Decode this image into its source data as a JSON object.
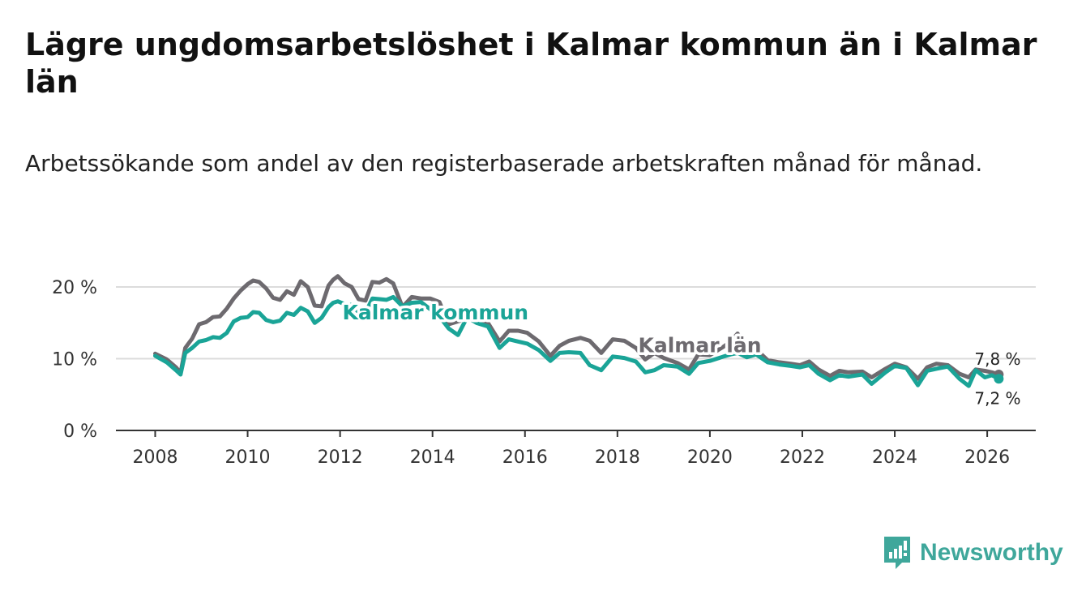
{
  "title": "Lägre ungdomsarbetslöshet i Kalmar kommun än i Kalmar län",
  "subtitle": "Arbetssökande som andel av den registerbaserade arbetskraften månad för månad.",
  "brand": {
    "name": "Newsworthy",
    "color": "#3fa79b"
  },
  "chart_data": {
    "type": "line",
    "title": "Lägre ungdomsarbetslöshet i Kalmar kommun än i Kalmar län",
    "subtitle": "Arbetssökande som andel av den registerbaserade arbetskraften månad för månad.",
    "xlabel": "",
    "ylabel": "",
    "xlim": [
      2007.15,
      2027.05
    ],
    "ylim": [
      0,
      20
    ],
    "x_ticks": [
      2008,
      2010,
      2012,
      2014,
      2016,
      2018,
      2020,
      2022,
      2024,
      2026
    ],
    "x_tick_labels": [
      "2008",
      "2010",
      "2012",
      "2014",
      "2016",
      "2018",
      "2020",
      "2022",
      "2024",
      "2026"
    ],
    "y_ticks": [
      0,
      10,
      20
    ],
    "y_tick_labels": [
      "0 %",
      "10 %",
      "20 %"
    ],
    "grid": true,
    "series": [
      {
        "name": "Kalmar län",
        "color": "#6d6a6f",
        "label": "Kalmar län",
        "end_label": "7,8 %",
        "points": [
          [
            2008.0,
            10.7
          ],
          [
            2008.25,
            9.9
          ],
          [
            2008.45,
            8.8
          ],
          [
            2008.55,
            8.0
          ],
          [
            2008.65,
            11.5
          ],
          [
            2008.8,
            12.8
          ],
          [
            2008.95,
            14.8
          ],
          [
            2009.1,
            15.1
          ],
          [
            2009.25,
            15.8
          ],
          [
            2009.4,
            15.9
          ],
          [
            2009.55,
            17.0
          ],
          [
            2009.7,
            18.4
          ],
          [
            2009.85,
            19.5
          ],
          [
            2010.0,
            20.4
          ],
          [
            2010.12,
            20.9
          ],
          [
            2010.25,
            20.7
          ],
          [
            2010.4,
            19.8
          ],
          [
            2010.55,
            18.5
          ],
          [
            2010.7,
            18.2
          ],
          [
            2010.85,
            19.4
          ],
          [
            2011.0,
            18.9
          ],
          [
            2011.15,
            20.8
          ],
          [
            2011.3,
            20.0
          ],
          [
            2011.45,
            17.4
          ],
          [
            2011.6,
            17.3
          ],
          [
            2011.75,
            20.2
          ],
          [
            2011.85,
            21.0
          ],
          [
            2011.95,
            21.5
          ],
          [
            2012.1,
            20.5
          ],
          [
            2012.25,
            20.0
          ],
          [
            2012.4,
            18.3
          ],
          [
            2012.55,
            18.1
          ],
          [
            2012.7,
            20.7
          ],
          [
            2012.85,
            20.6
          ],
          [
            2013.0,
            21.1
          ],
          [
            2013.15,
            20.5
          ],
          [
            2013.35,
            17.2
          ],
          [
            2013.55,
            18.6
          ],
          [
            2013.75,
            18.4
          ],
          [
            2013.95,
            18.4
          ],
          [
            2014.15,
            17.9
          ],
          [
            2014.35,
            14.8
          ],
          [
            2014.55,
            15.2
          ],
          [
            2014.75,
            15.6
          ],
          [
            2014.95,
            15.6
          ],
          [
            2015.2,
            15.0
          ],
          [
            2015.45,
            12.4
          ],
          [
            2015.65,
            13.9
          ],
          [
            2015.85,
            13.9
          ],
          [
            2016.05,
            13.6
          ],
          [
            2016.3,
            12.4
          ],
          [
            2016.55,
            10.4
          ],
          [
            2016.75,
            11.8
          ],
          [
            2016.95,
            12.5
          ],
          [
            2017.2,
            12.9
          ],
          [
            2017.4,
            12.5
          ],
          [
            2017.65,
            10.8
          ],
          [
            2017.9,
            12.7
          ],
          [
            2018.15,
            12.5
          ],
          [
            2018.4,
            11.5
          ],
          [
            2018.6,
            9.9
          ],
          [
            2018.8,
            10.8
          ],
          [
            2019.0,
            10.1
          ],
          [
            2019.3,
            9.4
          ],
          [
            2019.55,
            8.5
          ],
          [
            2019.75,
            10.6
          ],
          [
            2020.0,
            10.5
          ],
          [
            2020.3,
            11.7
          ],
          [
            2020.45,
            12.4
          ],
          [
            2020.6,
            13.5
          ],
          [
            2020.8,
            11.2
          ],
          [
            2021.0,
            11.3
          ],
          [
            2021.25,
            9.8
          ],
          [
            2021.5,
            9.5
          ],
          [
            2021.75,
            9.3
          ],
          [
            2021.95,
            9.1
          ],
          [
            2022.15,
            9.6
          ],
          [
            2022.35,
            8.5
          ],
          [
            2022.6,
            7.6
          ],
          [
            2022.8,
            8.3
          ],
          [
            2023.0,
            8.1
          ],
          [
            2023.3,
            8.2
          ],
          [
            2023.5,
            7.4
          ],
          [
            2023.8,
            8.6
          ],
          [
            2024.0,
            9.3
          ],
          [
            2024.25,
            8.8
          ],
          [
            2024.5,
            7.2
          ],
          [
            2024.7,
            8.8
          ],
          [
            2024.9,
            9.3
          ],
          [
            2025.15,
            9.1
          ],
          [
            2025.4,
            7.9
          ],
          [
            2025.6,
            7.4
          ],
          [
            2025.75,
            8.5
          ],
          [
            2025.95,
            8.3
          ],
          [
            2026.1,
            8.1
          ],
          [
            2026.25,
            7.8
          ]
        ]
      },
      {
        "name": "Kalmar kommun",
        "color": "#1aa497",
        "label": "Kalmar kommun",
        "end_label": "7,2 %",
        "points": [
          [
            2008.0,
            10.4
          ],
          [
            2008.25,
            9.5
          ],
          [
            2008.45,
            8.4
          ],
          [
            2008.55,
            7.8
          ],
          [
            2008.65,
            10.8
          ],
          [
            2008.8,
            11.5
          ],
          [
            2008.95,
            12.4
          ],
          [
            2009.1,
            12.6
          ],
          [
            2009.25,
            13.0
          ],
          [
            2009.4,
            12.9
          ],
          [
            2009.55,
            13.6
          ],
          [
            2009.7,
            15.2
          ],
          [
            2009.85,
            15.7
          ],
          [
            2010.0,
            15.8
          ],
          [
            2010.12,
            16.5
          ],
          [
            2010.25,
            16.4
          ],
          [
            2010.4,
            15.4
          ],
          [
            2010.55,
            15.1
          ],
          [
            2010.7,
            15.3
          ],
          [
            2010.85,
            16.4
          ],
          [
            2011.0,
            16.1
          ],
          [
            2011.15,
            17.1
          ],
          [
            2011.3,
            16.6
          ],
          [
            2011.45,
            15.0
          ],
          [
            2011.6,
            15.7
          ],
          [
            2011.75,
            17.2
          ],
          [
            2011.85,
            17.8
          ],
          [
            2011.95,
            18.0
          ],
          [
            2012.1,
            17.6
          ],
          [
            2012.25,
            17.5
          ],
          [
            2012.4,
            16.5
          ],
          [
            2012.55,
            16.4
          ],
          [
            2012.7,
            18.4
          ],
          [
            2012.85,
            18.3
          ],
          [
            2013.0,
            18.2
          ],
          [
            2013.15,
            18.6
          ],
          [
            2013.35,
            17.3
          ],
          [
            2013.55,
            17.8
          ],
          [
            2013.75,
            17.9
          ],
          [
            2013.95,
            16.9
          ],
          [
            2014.15,
            15.9
          ],
          [
            2014.35,
            14.2
          ],
          [
            2014.55,
            13.3
          ],
          [
            2014.75,
            15.8
          ],
          [
            2014.95,
            15.0
          ],
          [
            2015.2,
            14.5
          ],
          [
            2015.45,
            11.5
          ],
          [
            2015.65,
            12.7
          ],
          [
            2015.85,
            12.4
          ],
          [
            2016.05,
            12.1
          ],
          [
            2016.3,
            11.2
          ],
          [
            2016.55,
            9.7
          ],
          [
            2016.75,
            10.8
          ],
          [
            2016.95,
            10.9
          ],
          [
            2017.2,
            10.8
          ],
          [
            2017.4,
            9.1
          ],
          [
            2017.65,
            8.4
          ],
          [
            2017.9,
            10.3
          ],
          [
            2018.15,
            10.1
          ],
          [
            2018.4,
            9.6
          ],
          [
            2018.6,
            8.1
          ],
          [
            2018.8,
            8.4
          ],
          [
            2019.0,
            9.1
          ],
          [
            2019.3,
            8.9
          ],
          [
            2019.55,
            7.9
          ],
          [
            2019.75,
            9.4
          ],
          [
            2020.0,
            9.7
          ],
          [
            2020.3,
            10.3
          ],
          [
            2020.45,
            10.6
          ],
          [
            2020.6,
            10.8
          ],
          [
            2020.8,
            10.2
          ],
          [
            2021.0,
            10.6
          ],
          [
            2021.25,
            9.5
          ],
          [
            2021.5,
            9.2
          ],
          [
            2021.75,
            9.0
          ],
          [
            2021.95,
            8.8
          ],
          [
            2022.15,
            9.1
          ],
          [
            2022.35,
            7.9
          ],
          [
            2022.6,
            7.0
          ],
          [
            2022.8,
            7.7
          ],
          [
            2023.0,
            7.5
          ],
          [
            2023.3,
            7.8
          ],
          [
            2023.5,
            6.5
          ],
          [
            2023.8,
            8.1
          ],
          [
            2024.0,
            9.0
          ],
          [
            2024.25,
            8.7
          ],
          [
            2024.5,
            6.3
          ],
          [
            2024.7,
            8.3
          ],
          [
            2024.9,
            8.6
          ],
          [
            2025.15,
            8.9
          ],
          [
            2025.4,
            7.2
          ],
          [
            2025.6,
            6.2
          ],
          [
            2025.75,
            8.4
          ],
          [
            2025.95,
            7.4
          ],
          [
            2026.1,
            7.7
          ],
          [
            2026.25,
            7.2
          ]
        ]
      }
    ]
  }
}
